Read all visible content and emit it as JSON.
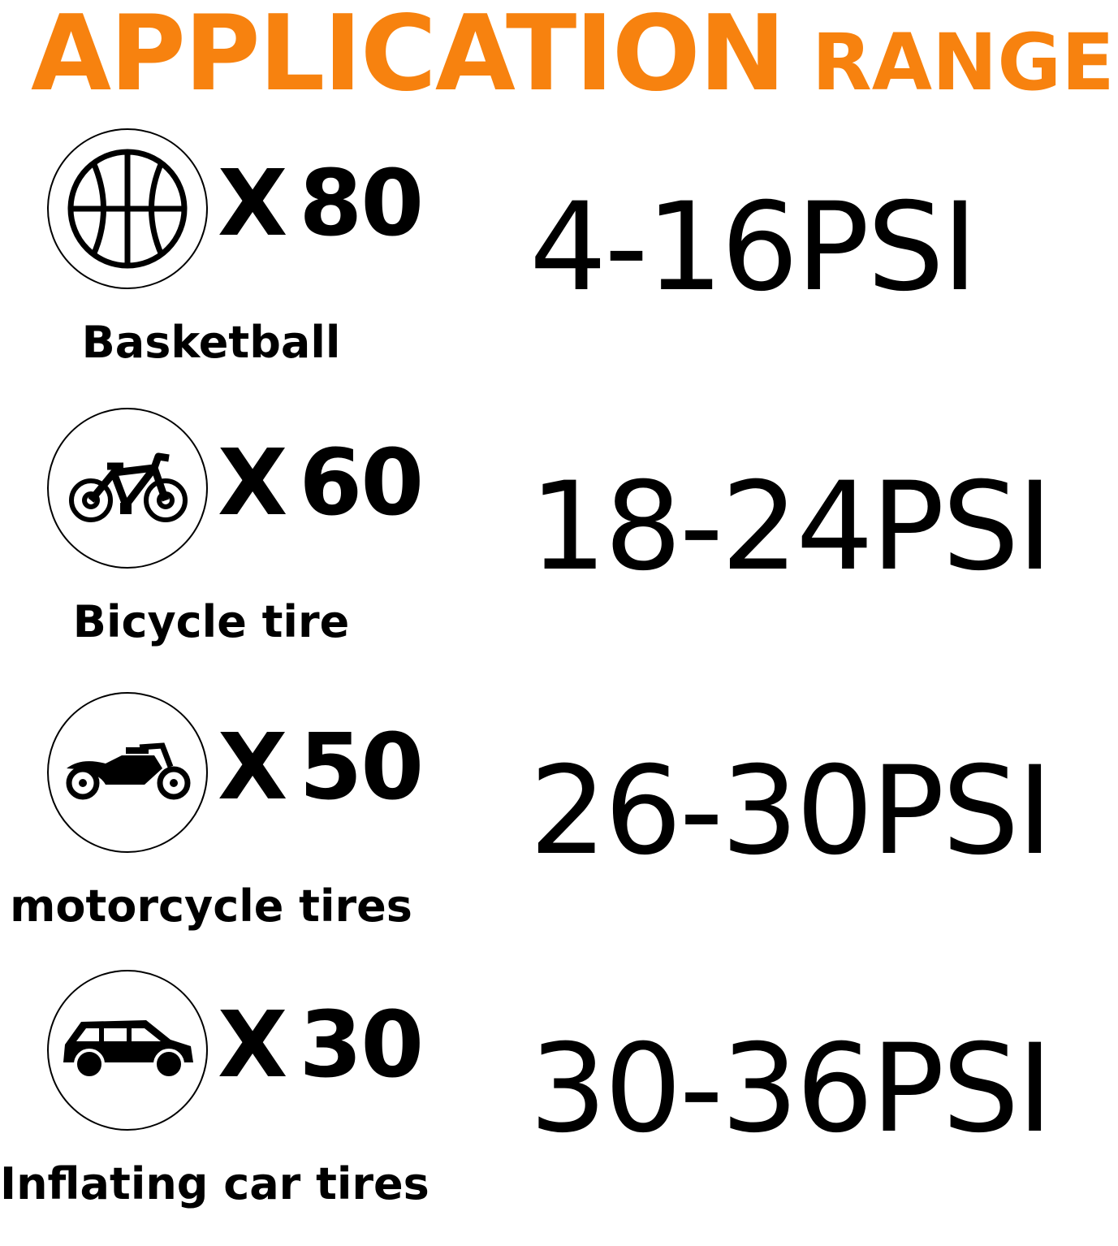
{
  "title": {
    "main": "APPLICATION",
    "sub": "RANGE",
    "color": "#F7820F"
  },
  "rows": [
    {
      "icon": "basketball-icon",
      "prefix": "X",
      "count": "80",
      "label": "Basketball",
      "psi": "4-16PSI"
    },
    {
      "icon": "bicycle-icon",
      "prefix": "X",
      "count": "60",
      "label": "Bicycle tire",
      "psi": "18-24PSI"
    },
    {
      "icon": "motorcycle-icon",
      "prefix": "X",
      "count": "50",
      "label": "motorcycle tires",
      "psi": "26-30PSI"
    },
    {
      "icon": "car-icon",
      "prefix": "X",
      "count": "30",
      "label": "Inflating car tires",
      "psi": "30-36PSI"
    }
  ]
}
